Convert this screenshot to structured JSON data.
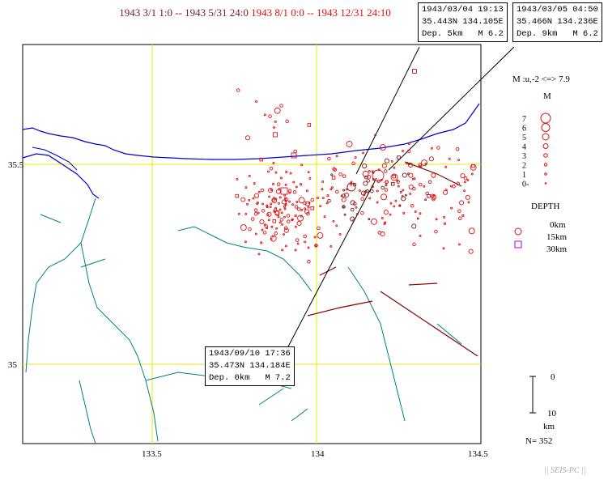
{
  "title": {
    "period1": "1943 3/1 1:0 -- 1943 5/31 24:0",
    "period2": "1943 8/1 0:0 -- 1943 12/31 24:10"
  },
  "map": {
    "lat_ticks": [
      "35.5",
      "35"
    ],
    "lon_ticks": [
      "133.5",
      "134",
      "134.5"
    ]
  },
  "callouts": [
    {
      "date": "1943/03/04 19:13",
      "coords": "35.443N 134.105E",
      "dep": "Dep. 5km",
      "mag": "M 6.2"
    },
    {
      "date": "1943/03/05 04:50",
      "coords": "35.466N 134.236E",
      "dep": "Dep. 9km",
      "mag": "M 6.2"
    },
    {
      "date": "1943/09/10 17:36",
      "coords": "35.473N 134.184E",
      "dep": "Dep. 0km",
      "mag": "M 7.2"
    }
  ],
  "legend": {
    "scale_label": "M :u,-2 <=> 7.9",
    "m_title": "M",
    "m_levels": [
      "7",
      "6",
      "5",
      "4",
      "3",
      "2",
      "1",
      "0-"
    ],
    "depth_title": "DEPTH",
    "depth_entries": [
      "0km",
      "15km",
      "30km"
    ],
    "depth_scale_top": "0",
    "depth_scale_bottom": "10",
    "depth_scale_unit": "km",
    "count": "N= 352"
  },
  "footer": "|| SEIS-PC ||",
  "colors": {
    "period1": "#7a1a1a",
    "period2": "#e01010",
    "coast": "#0000cc",
    "rivers": "#008080",
    "faults": "#8b0000",
    "grid": "#e8e800",
    "depth_30km": "#cc00cc"
  }
}
